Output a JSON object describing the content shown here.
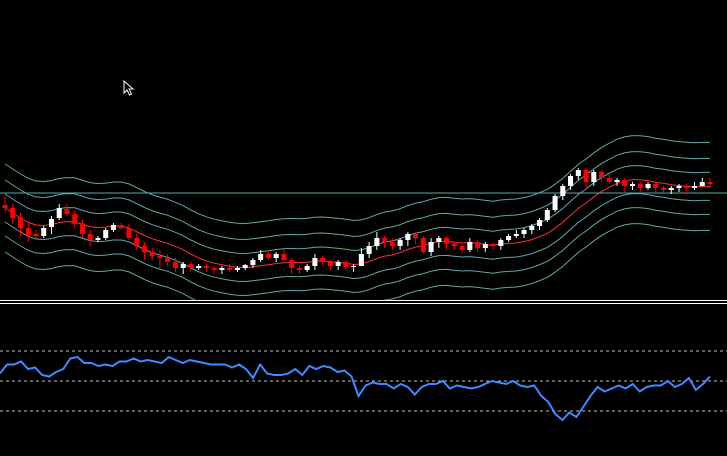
{
  "theme": {
    "background": "#000000",
    "bull_candle": "#ffffff",
    "bear_candle": "#ff0000",
    "wick": "#ffffff",
    "band_color": "#5fa8a8",
    "midline_color": "#ff3030",
    "hline_color": "#5fa8a8",
    "separator_color": "#ffffff",
    "indicator_color": "#3d8cff",
    "indicator_level_color": "#c0c0c0"
  },
  "chart_data": [
    {
      "type": "candlestick",
      "title": "",
      "xlabel": "",
      "ylabel": "",
      "grid": false,
      "legend": "none",
      "ylim": [
        0,
        300
      ],
      "horizontal_level": 107,
      "overlays": [
        "bollinger-band-1",
        "bollinger-band-2",
        "bollinger-band-3",
        "moving-average"
      ],
      "candles": [
        [
          95,
          92,
          104,
          88
        ],
        [
          92,
          82,
          96,
          76
        ],
        [
          83,
          72,
          87,
          64
        ],
        [
          72,
          65,
          77,
          58
        ],
        [
          66,
          64,
          70,
          60
        ],
        [
          64,
          72,
          74,
          62
        ],
        [
          73,
          81,
          84,
          66
        ],
        [
          82,
          92,
          96,
          80
        ],
        [
          91,
          86,
          96,
          84
        ],
        [
          86,
          76,
          90,
          72
        ],
        [
          76,
          66,
          80,
          62
        ],
        [
          66,
          60,
          70,
          54
        ],
        [
          60,
          62,
          64,
          58
        ],
        [
          62,
          70,
          72,
          60
        ],
        [
          70,
          75,
          77,
          68
        ],
        [
          75,
          72,
          77,
          70
        ],
        [
          72,
          62,
          76,
          60
        ],
        [
          62,
          54,
          66,
          50
        ],
        [
          54,
          48,
          58,
          40
        ],
        [
          48,
          44,
          52,
          40
        ],
        [
          44,
          42,
          50,
          32
        ],
        [
          42,
          38,
          46,
          34
        ],
        [
          38,
          32,
          42,
          28
        ],
        [
          32,
          36,
          38,
          26
        ],
        [
          36,
          32,
          38,
          28
        ],
        [
          32,
          34,
          36,
          30
        ],
        [
          34,
          32,
          36,
          28
        ],
        [
          32,
          30,
          34,
          26
        ],
        [
          30,
          32,
          34,
          26
        ],
        [
          32,
          30,
          36,
          28
        ],
        [
          30,
          32,
          34,
          28
        ],
        [
          32,
          35,
          36,
          30
        ],
        [
          35,
          40,
          42,
          32
        ],
        [
          40,
          46,
          50,
          38
        ],
        [
          46,
          42,
          48,
          40
        ],
        [
          42,
          46,
          48,
          38
        ],
        [
          46,
          40,
          50,
          38
        ],
        [
          40,
          32,
          42,
          26
        ],
        [
          32,
          30,
          34,
          26
        ],
        [
          30,
          34,
          36,
          28
        ],
        [
          34,
          42,
          46,
          30
        ],
        [
          42,
          38,
          44,
          34
        ],
        [
          38,
          34,
          40,
          30
        ],
        [
          34,
          38,
          40,
          30
        ],
        [
          38,
          33,
          40,
          30
        ],
        [
          33,
          34,
          36,
          28
        ],
        [
          34,
          46,
          52,
          44
        ],
        [
          46,
          54,
          58,
          42
        ],
        [
          54,
          62,
          68,
          50
        ],
        [
          62,
          58,
          64,
          52
        ],
        [
          58,
          54,
          62,
          50
        ],
        [
          54,
          60,
          62,
          50
        ],
        [
          60,
          66,
          68,
          54
        ],
        [
          66,
          62,
          68,
          56
        ],
        [
          62,
          48,
          64,
          46
        ],
        [
          48,
          58,
          62,
          44
        ],
        [
          58,
          62,
          64,
          52
        ],
        [
          62,
          56,
          64,
          50
        ],
        [
          56,
          54,
          58,
          50
        ],
        [
          54,
          50,
          56,
          46
        ],
        [
          50,
          58,
          62,
          48
        ],
        [
          58,
          52,
          60,
          48
        ],
        [
          52,
          56,
          58,
          48
        ],
        [
          56,
          54,
          58,
          50
        ],
        [
          54,
          60,
          62,
          50
        ],
        [
          60,
          64,
          66,
          58
        ],
        [
          64,
          66,
          70,
          62
        ],
        [
          66,
          70,
          72,
          62
        ],
        [
          70,
          74,
          76,
          66
        ],
        [
          74,
          80,
          82,
          70
        ],
        [
          80,
          90,
          92,
          78
        ],
        [
          90,
          104,
          106,
          88
        ],
        [
          104,
          114,
          116,
          100
        ],
        [
          114,
          124,
          126,
          110
        ],
        [
          124,
          130,
          132,
          120
        ],
        [
          130,
          118,
          132,
          110
        ],
        [
          118,
          128,
          130,
          114
        ],
        [
          128,
          122,
          130,
          118
        ],
        [
          122,
          118,
          126,
          116
        ],
        [
          118,
          120,
          122,
          114
        ],
        [
          120,
          114,
          122,
          108
        ],
        [
          114,
          116,
          118,
          110
        ],
        [
          116,
          112,
          118,
          108
        ],
        [
          112,
          116,
          118,
          110
        ],
        [
          116,
          112,
          118,
          108
        ],
        [
          112,
          110,
          114,
          106
        ],
        [
          110,
          112,
          114,
          106
        ],
        [
          112,
          114,
          116,
          108
        ],
        [
          114,
          112,
          116,
          106
        ],
        [
          112,
          114,
          118,
          110
        ],
        [
          114,
          118,
          122,
          114
        ],
        [
          118,
          116,
          122,
          112
        ]
      ]
    },
    {
      "type": "line",
      "title": "",
      "xlabel": "",
      "ylabel": "",
      "grid": false,
      "legend": "none",
      "ylim": [
        0,
        100
      ],
      "levels": [
        70,
        50,
        30
      ],
      "values": [
        55,
        61,
        61,
        63,
        58,
        59,
        54,
        53,
        56,
        58,
        65,
        66,
        62,
        62,
        60,
        61,
        60,
        63,
        63,
        65,
        63,
        64,
        63,
        62,
        66,
        64,
        62,
        64,
        63,
        62,
        61,
        61,
        61,
        59,
        61,
        58,
        52,
        61,
        55,
        54,
        54,
        55,
        58,
        54,
        60,
        58,
        60,
        59,
        56,
        57,
        53,
        40,
        47,
        49,
        48,
        48,
        45,
        48,
        46,
        41,
        46,
        48,
        48,
        50,
        45,
        47,
        46,
        45,
        46,
        48,
        50,
        49,
        48,
        50,
        47,
        46,
        47,
        40,
        36,
        28,
        24,
        29,
        26,
        33,
        40,
        46,
        43,
        45,
        47,
        45,
        48,
        43,
        46,
        47,
        47,
        50,
        46,
        48,
        52,
        44,
        48,
        53
      ]
    }
  ]
}
